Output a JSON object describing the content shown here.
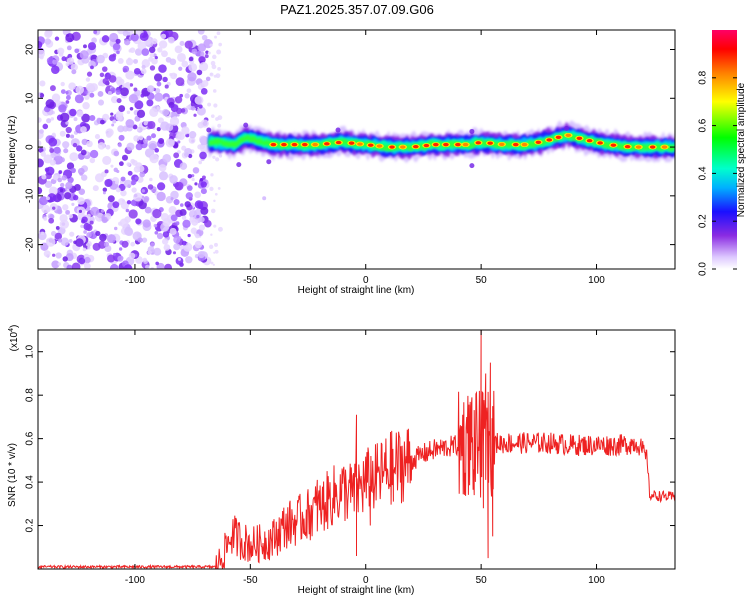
{
  "title": "PAZ1.2025.357.07.09.G06",
  "chart_data": [
    {
      "type": "heatmap",
      "name": "spectrogram",
      "xlabel": "Height of straight line (km)",
      "ylabel": "Frequency (Hz)",
      "xlim": [
        -142,
        134
      ],
      "ylim": [
        -25,
        24
      ],
      "xticks": [
        -100,
        -50,
        0,
        50,
        100
      ],
      "xtick_labels": [
        "-100",
        "-50",
        "0",
        "50",
        "100"
      ],
      "yticks": [
        -20,
        -10,
        0,
        10,
        20
      ],
      "ytick_labels": [
        "-20",
        "-10",
        "0",
        "10",
        "20"
      ],
      "noise_region_km": [
        -142,
        -68
      ],
      "signal_band": {
        "start_km": -68,
        "end_km": 134,
        "center_freq_hz": [
          [
            -68,
            1
          ],
          [
            -62,
            1
          ],
          [
            -57,
            0.5
          ],
          [
            -52,
            2
          ],
          [
            -48,
            1.5
          ],
          [
            -40,
            0.5
          ],
          [
            -30,
            0.5
          ],
          [
            -20,
            0.5
          ],
          [
            -10,
            1
          ],
          [
            0,
            0.5
          ],
          [
            10,
            0
          ],
          [
            20,
            0
          ],
          [
            30,
            0.5
          ],
          [
            40,
            0.5
          ],
          [
            45,
            0.5
          ],
          [
            50,
            1
          ],
          [
            60,
            0.5
          ],
          [
            70,
            0.5
          ],
          [
            80,
            1.5
          ],
          [
            87,
            2.5
          ],
          [
            95,
            1.5
          ],
          [
            105,
            0.5
          ],
          [
            115,
            0
          ],
          [
            125,
            0
          ],
          [
            134,
            0
          ]
        ]
      },
      "colorbar": {
        "label": "Normalized spectral amplitude",
        "range": [
          0,
          1
        ],
        "ticks": [
          0.0,
          0.2,
          0.4,
          0.6,
          0.8
        ],
        "tick_labels": [
          "0.0",
          "0.2",
          "0.4",
          "0.6",
          "0.8"
        ]
      }
    },
    {
      "type": "line",
      "name": "snr",
      "xlabel": "Height of straight line (km)",
      "ylabel": "SNR (10 * v/v)",
      "y_multiplier_label": "(x10",
      "y_multiplier_exp": "4",
      "xlim": [
        -142,
        134
      ],
      "ylim": [
        0,
        1.1
      ],
      "xticks": [
        -100,
        -50,
        0,
        50,
        100
      ],
      "xtick_labels": [
        "-100",
        "-50",
        "0",
        "50",
        "100"
      ],
      "yticks": [
        0.2,
        0.4,
        0.6,
        0.8,
        1.0
      ],
      "ytick_labels": [
        "0.2",
        "0.4",
        "0.6",
        "0.8",
        "1.0"
      ],
      "color": "#ee2222",
      "trend_points": [
        [
          -142,
          0.01
        ],
        [
          -65,
          0.01
        ],
        [
          -62,
          0.06
        ],
        [
          -58,
          0.16
        ],
        [
          -55,
          0.14
        ],
        [
          -50,
          0.11
        ],
        [
          -45,
          0.12
        ],
        [
          -40,
          0.14
        ],
        [
          -35,
          0.2
        ],
        [
          -30,
          0.22
        ],
        [
          -25,
          0.25
        ],
        [
          -20,
          0.28
        ],
        [
          -15,
          0.33
        ],
        [
          -10,
          0.36
        ],
        [
          -5,
          0.35
        ],
        [
          0,
          0.4
        ],
        [
          5,
          0.42
        ],
        [
          10,
          0.46
        ],
        [
          15,
          0.48
        ],
        [
          20,
          0.5
        ],
        [
          25,
          0.53
        ],
        [
          30,
          0.55
        ],
        [
          35,
          0.56
        ],
        [
          40,
          0.57
        ],
        [
          45,
          0.58
        ],
        [
          50,
          0.57
        ],
        [
          55,
          0.58
        ],
        [
          60,
          0.58
        ],
        [
          70,
          0.58
        ],
        [
          80,
          0.58
        ],
        [
          90,
          0.57
        ],
        [
          100,
          0.57
        ],
        [
          110,
          0.57
        ],
        [
          118,
          0.58
        ],
        [
          122,
          0.5
        ],
        [
          123,
          0.34
        ],
        [
          134,
          0.33
        ]
      ],
      "spikes": [
        [
          -4,
          0.71
        ],
        [
          -4,
          0.06
        ],
        [
          -21,
          0.41
        ],
        [
          -29,
          0.32
        ],
        [
          46,
          0.79
        ],
        [
          50,
          1.1
        ],
        [
          52,
          0.9
        ],
        [
          53,
          0.05
        ],
        [
          54,
          0.95
        ],
        [
          55,
          0.15
        ],
        [
          47,
          0.34
        ],
        [
          51,
          0.28
        ],
        [
          2,
          0.2
        ],
        [
          12,
          0.31
        ]
      ]
    }
  ]
}
